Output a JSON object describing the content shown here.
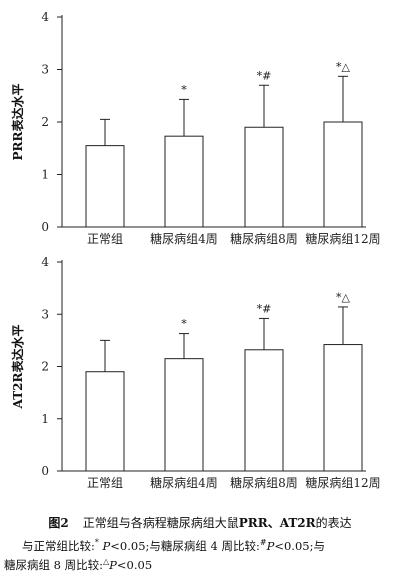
{
  "chart_data": [
    {
      "type": "bar",
      "ylabel": "PRR表达水平",
      "ylim": [
        0,
        4
      ],
      "yticks": [
        0,
        1,
        2,
        3,
        4
      ],
      "categories": [
        "正常组",
        "糖尿病组4周",
        "糖尿病组8周",
        "糖尿病组12周"
      ],
      "values": [
        1.55,
        1.73,
        1.9,
        2.0
      ],
      "errors": [
        0.5,
        0.7,
        0.8,
        0.87
      ],
      "markers": [
        "",
        "*",
        "*#",
        "*△"
      ]
    },
    {
      "type": "bar",
      "ylabel": "AT2R表达水平",
      "ylim": [
        0,
        4
      ],
      "yticks": [
        0,
        1,
        2,
        3,
        4
      ],
      "categories": [
        "正常组",
        "糖尿病组4周",
        "糖尿病组8周",
        "糖尿病组12周"
      ],
      "values": [
        1.9,
        2.15,
        2.32,
        2.42
      ],
      "errors": [
        0.6,
        0.48,
        0.6,
        0.72
      ],
      "markers": [
        "",
        "*",
        "*#",
        "*△"
      ]
    }
  ],
  "caption": {
    "fig_no": "图2",
    "title_prefix": "正常组与各病程糖尿病组大鼠",
    "title_bold": "PRR、AT2R",
    "title_suffix": "的表达",
    "note_line1_a": "与正常组比较:",
    "note_sup1": "*",
    "note_p": "P",
    "note_line1_b": "<0.05;与糖尿病组 4 周比较:",
    "note_sup2": "#",
    "note_line1_c": "<0.05;与",
    "note_line2_a": "糖尿病组 8 周比较:",
    "note_sup3": "△",
    "note_line2_b": "<0.05"
  }
}
